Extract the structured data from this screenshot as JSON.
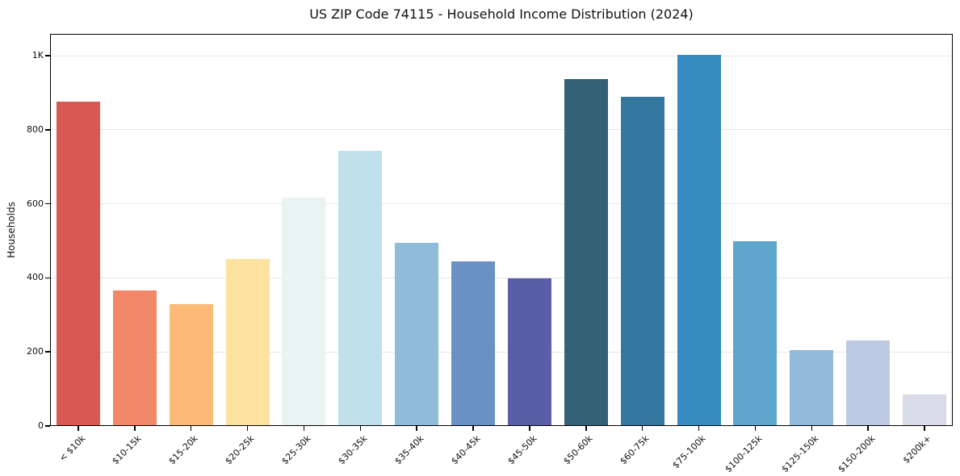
{
  "page": {
    "background_color": "#ffffff",
    "text_color": "#111111",
    "gridline_color": "#e7e7e7",
    "frame_color": "#000000"
  },
  "chart_data": {
    "type": "bar",
    "title": "US ZIP Code 74115 - Household Income Distribution (2024)",
    "xlabel": "",
    "ylabel": "Households",
    "legend": "none",
    "grid": "horizontal",
    "ylim": [
      0,
      1059
    ],
    "yticks": {
      "values": [
        0,
        200,
        400,
        600,
        800,
        1000
      ],
      "labels": [
        "0",
        "200",
        "400",
        "600",
        "800",
        "1K"
      ]
    },
    "categories": [
      "< $10k",
      "$10-15k",
      "$15-20k",
      "$20-25k",
      "$25-30k",
      "$30-35k",
      "$35-40k",
      "$40-45k",
      "$45-50k",
      "$50-60k",
      "$60-75k",
      "$75-100k",
      "$100-125k",
      "$125-150k",
      "$150-200k",
      "$200k+"
    ],
    "values": [
      875,
      367,
      328,
      450,
      616,
      743,
      494,
      444,
      398,
      936,
      888,
      1002,
      498,
      205,
      230,
      85
    ],
    "bar_colors": [
      "#d95852",
      "#f28869",
      "#fcba78",
      "#fde2a0",
      "#e9f3f3",
      "#c0e0ec",
      "#8fbcd9",
      "#6a91c4",
      "#5a5ea7",
      "#356177",
      "#34789f",
      "#368cc1",
      "#5fa6cc",
      "#90b9da",
      "#bccbe3",
      "#d9dbe9"
    ]
  }
}
